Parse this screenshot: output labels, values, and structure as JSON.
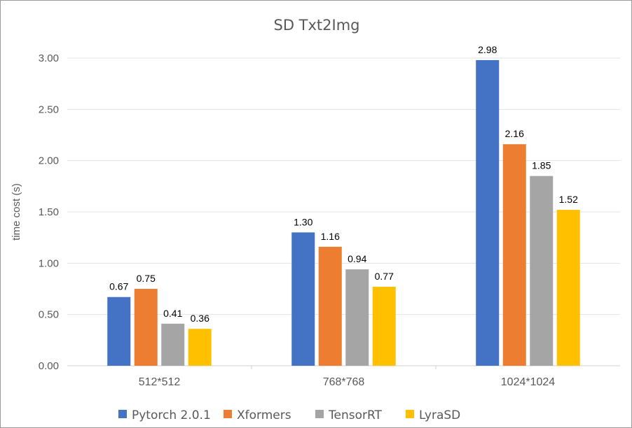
{
  "chart_data": {
    "type": "bar",
    "title": "SD Txt2Img",
    "xlabel": "",
    "ylabel": "time cost (s)",
    "ylim": [
      0,
      3.0
    ],
    "yticks": [
      "0.00",
      "0.50",
      "1.00",
      "1.50",
      "2.00",
      "2.50",
      "3.00"
    ],
    "grid": true,
    "legend_position": "bottom",
    "categories": [
      "512*512",
      "768*768",
      "1024*1024"
    ],
    "series": [
      {
        "name": "Pytorch 2.0.1",
        "color": "#4472C4",
        "values": [
          0.67,
          1.3,
          2.98
        ]
      },
      {
        "name": "Xformers",
        "color": "#ED7D31",
        "values": [
          0.75,
          1.16,
          2.16
        ]
      },
      {
        "name": "TensorRT",
        "color": "#A5A5A5",
        "values": [
          0.41,
          0.94,
          1.85
        ]
      },
      {
        "name": "LyraSD",
        "color": "#FFC000",
        "values": [
          0.36,
          0.77,
          1.52
        ]
      }
    ]
  }
}
